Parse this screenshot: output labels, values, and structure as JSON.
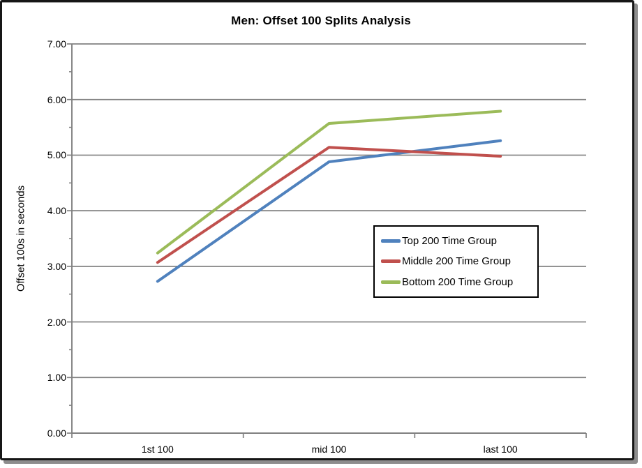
{
  "chart_data": {
    "type": "line",
    "title": "Men: Offset 100 Splits Analysis",
    "ylabel": "Offset 100s in seconds",
    "xlabel": "",
    "categories": [
      "1st 100",
      "mid 100",
      "last 100"
    ],
    "series": [
      {
        "name": "Top 200 Time Group",
        "color": "#4F81BD",
        "values": [
          2.73,
          4.88,
          5.26
        ]
      },
      {
        "name": "Middle 200 Time Group",
        "color": "#C0504D",
        "values": [
          3.07,
          5.14,
          4.98
        ]
      },
      {
        "name": "Bottom 200 Time Group",
        "color": "#9BBB59",
        "values": [
          3.24,
          5.57,
          5.79
        ]
      }
    ],
    "ylim": [
      0,
      7
    ],
    "ytick_step": 1,
    "ytick_labels": [
      "0.00",
      "1.00",
      "2.00",
      "3.00",
      "4.00",
      "5.00",
      "6.00",
      "7.00"
    ],
    "grid": true,
    "legend_position": "center-right",
    "axis_color": "#808080",
    "legend_border_color": "#000000",
    "frame_border_color": "#161616",
    "frame_shadow_color": "#8d8d8d"
  }
}
